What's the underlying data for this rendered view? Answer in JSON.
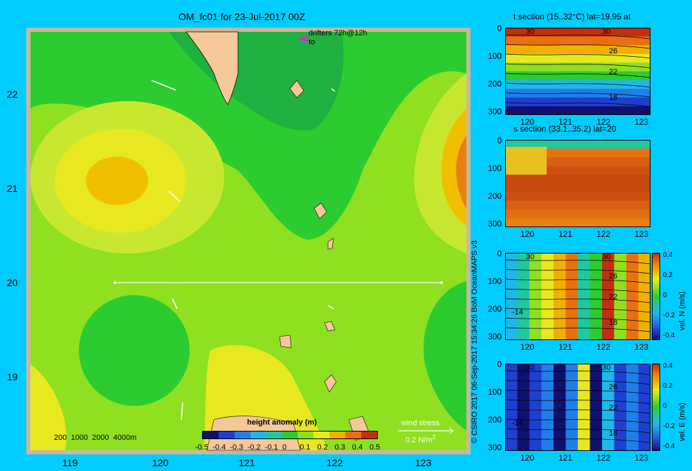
{
  "map": {
    "title": "OM_fc01 for 23-Jul-2017 00Z",
    "drifters_label": "drifters 72h@12h",
    "drifters_to": "to",
    "lat_ticks": [
      "22",
      "21",
      "20",
      "19"
    ],
    "lon_ticks": [
      "119",
      "120",
      "121",
      "122",
      "123"
    ],
    "bathy_label": "200  1000  2000  4000m",
    "wind_stress_label": "wind stress",
    "wind_stress_unit": "0.2 N/m",
    "wind_stress_exp": "2",
    "colorbar": {
      "title": "height anomaly (m)",
      "ticks": [
        "-0.5",
        "-0.4",
        "-0.3",
        "-0.2",
        "-0.1",
        "0",
        "0.1",
        "0.2",
        "0.3",
        "0.4",
        "0.5"
      ],
      "colors": [
        "#10106e",
        "#1f3fd0",
        "#1f7fe8",
        "#1fb8e8",
        "#20c8a0",
        "#2ccc30",
        "#8ee020",
        "#e8e820",
        "#f0b000",
        "#e87010",
        "#c03010"
      ]
    }
  },
  "credit": "© CSIRO 2017   06-Sep-2017 15:34:26 BoM OceanMAPS v3",
  "panels": [
    {
      "title": "t section (15..32°C) lat=19.95 at",
      "x_ticks": [
        "120",
        "121",
        "122",
        "123"
      ],
      "y_ticks": [
        "0",
        "100",
        "200",
        "300"
      ],
      "contour_labels": [
        "30",
        "30",
        "26",
        "22",
        "18"
      ]
    },
    {
      "title": "s section (33.1..35.2) lat=20",
      "x_ticks": [
        "120",
        "121",
        "122",
        "123"
      ],
      "y_ticks": [
        "0",
        "100",
        "200",
        "300"
      ]
    },
    {
      "title": "",
      "x_ticks": [
        "120",
        "121",
        "122",
        "123"
      ],
      "y_ticks": [
        "0",
        "100",
        "200",
        "300"
      ],
      "contour_labels": [
        "30",
        "30",
        "26",
        "22",
        "18",
        "-14"
      ],
      "cbar_ticks": [
        "0.4",
        "0.2",
        "0",
        "-0.2",
        "-0.4"
      ],
      "cbar_label": "vel. N (m/s)"
    },
    {
      "title": "",
      "x_ticks": [
        "120",
        "121",
        "122",
        "123"
      ],
      "y_ticks": [
        "0",
        "100",
        "200",
        "300"
      ],
      "contour_labels": [
        "30",
        "30",
        "26",
        "22",
        "18",
        "-14"
      ],
      "cbar_ticks": [
        "0.4",
        "0.2",
        "0",
        "-0.2",
        "-0.4"
      ],
      "cbar_label": "vel. E (m/s)"
    }
  ]
}
